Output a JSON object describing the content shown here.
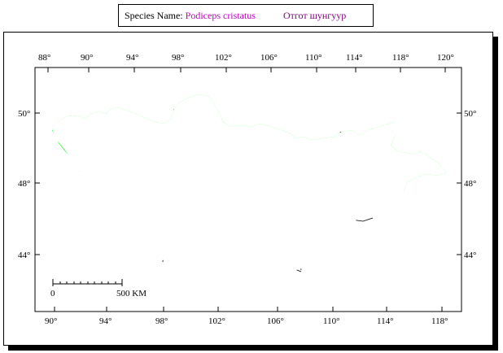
{
  "header": {
    "species_prefix": "Species Name: ",
    "scientific_name": "Podiceps cristatus",
    "mongolian_name": "Отгот шунгуур"
  },
  "map": {
    "top_longitudes": [
      "88°",
      "90°",
      "94°",
      "98°",
      "102°",
      "106°",
      "110°",
      "114°",
      "118°",
      "120°"
    ],
    "bottom_longitudes": [
      "90°",
      "94°",
      "98°",
      "102°",
      "106°",
      "110°",
      "114°",
      "118°"
    ],
    "left_latitudes": [
      "50°",
      "48°",
      "44°"
    ],
    "right_latitudes": [
      "50°",
      "48°",
      "44°"
    ],
    "scale_start": "0",
    "scale_end": "500 KM",
    "colors": {
      "range": "#00ff00",
      "border": "#c0501a",
      "water": "#1f3fa0",
      "internal": "#000000"
    }
  }
}
